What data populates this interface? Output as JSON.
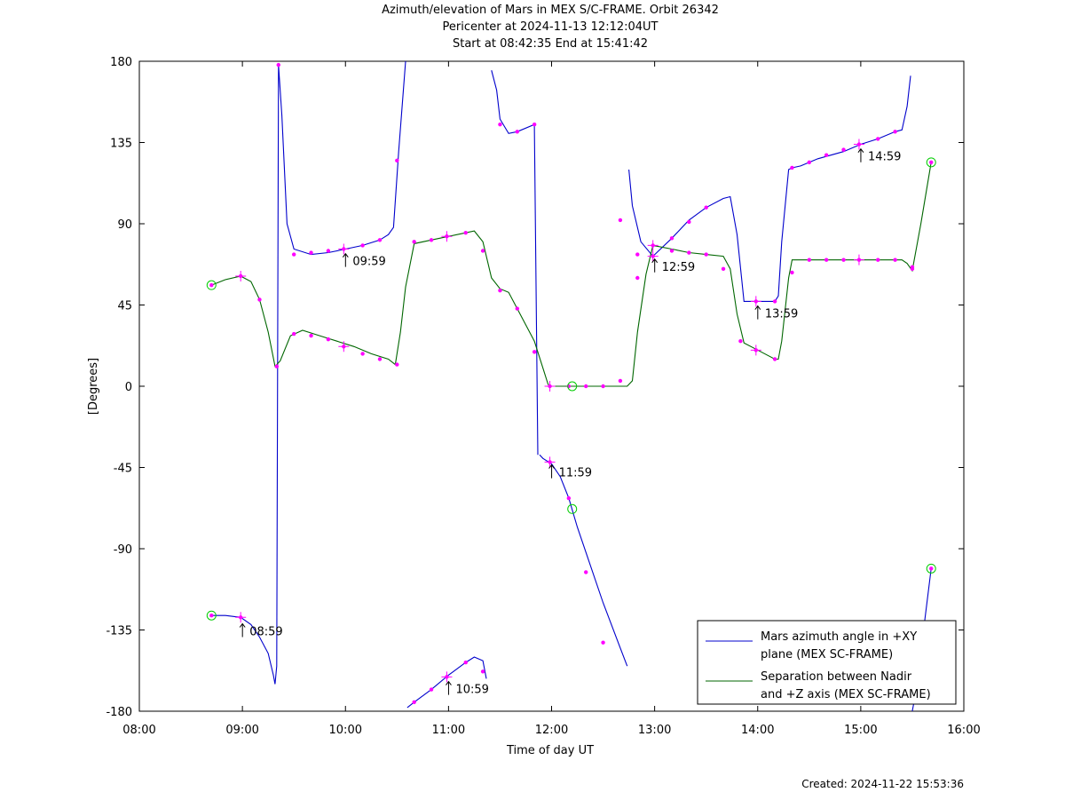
{
  "header": {
    "title": "Azimuth/elevation of Mars in MEX S/C-FRAME.  Orbit 26342",
    "subtitle1": "Pericenter at 2024-11-13 12:12:04UT",
    "subtitle2": "Start at 08:42:35 End at 15:41:42"
  },
  "footer": {
    "created": "Created: 2024-11-22 15:53:36"
  },
  "chart_data": {
    "type": "line",
    "title": "Azimuth/elevation of Mars in MEX S/C-FRAME.  Orbit 26342",
    "xlabel": "Time of day UT",
    "ylabel": "[Degrees]",
    "xlim": [
      "08:00",
      "16:00"
    ],
    "ylim": [
      -180,
      180
    ],
    "xticks": [
      "08:00",
      "09:00",
      "10:00",
      "11:00",
      "12:00",
      "13:00",
      "14:00",
      "15:00",
      "16:00"
    ],
    "yticks": [
      180,
      135,
      90,
      45,
      0,
      -45,
      -90,
      -135,
      -180
    ],
    "grid": false,
    "legend_position": "bottom-right",
    "colors": {
      "azimuth": "#0000cc",
      "separation": "#006600",
      "markers": "#ff00ff",
      "circles": "#00cc00"
    },
    "series": [
      {
        "name": "Mars azimuth angle in +XY plane (MEX SC-FRAME)",
        "color": "#0000cc",
        "x": [
          "08:42",
          "08:50",
          "08:59",
          "09:05",
          "09:10",
          "09:15",
          "09:18",
          "09:19",
          "09:20",
          "09:21",
          "09:23",
          "09:26",
          "09:30",
          "09:40",
          "09:50",
          "10:00",
          "10:10",
          "10:20",
          "10:25",
          "10:28",
          "10:31",
          "10:35",
          "null",
          "10:36",
          "10:40",
          "10:50",
          "11:00",
          "11:10",
          "11:15",
          "11:20",
          "11:22",
          "null",
          "11:25",
          "11:28",
          "11:30",
          "11:35",
          "11:40",
          "11:50",
          "11:52",
          "null",
          "11:53",
          "11:55",
          "12:00",
          "12:05",
          "12:10",
          "12:15",
          "12:20",
          "12:30",
          "12:40",
          "12:44",
          "null",
          "12:45",
          "12:47",
          "12:52",
          "12:59",
          "13:10",
          "13:20",
          "13:30",
          "13:40",
          "13:44",
          "13:48",
          "13:52",
          "14:00",
          "14:10",
          "14:12",
          "14:14",
          "14:18",
          "14:20",
          "14:25",
          "14:35",
          "14:50",
          "15:00",
          "15:10",
          "15:20",
          "15:24",
          "15:27",
          "15:29",
          "null",
          "15:30",
          "15:32",
          "15:41"
        ],
        "y": [
          -127,
          -127,
          -128,
          -132,
          -139,
          -148,
          -160,
          -165,
          -155,
          178,
          150,
          90,
          76,
          73,
          74,
          76,
          78,
          81,
          84,
          88,
          130,
          180,
          null,
          -178,
          -175,
          -168,
          -160,
          -153,
          -150,
          -152,
          -162,
          null,
          175,
          164,
          148,
          140,
          141,
          145,
          -38,
          null,
          -38,
          -40,
          -43,
          -50,
          -62,
          -78,
          -92,
          -120,
          -145,
          -155,
          null,
          120,
          100,
          80,
          72,
          82,
          92,
          99,
          104,
          105,
          84,
          47,
          47,
          47,
          50,
          80,
          120,
          121,
          122,
          126,
          130,
          134,
          137,
          141,
          142,
          155,
          172,
          null,
          -180,
          -170,
          -101
        ]
      },
      {
        "name": "Separation between Nadir and +Z axis (MEX SC-FRAME)",
        "color": "#006600",
        "x": [
          "08:42",
          "08:50",
          "08:59",
          "09:05",
          "09:10",
          "09:15",
          "09:19",
          "09:22",
          "09:28",
          "09:35",
          "09:45",
          "09:55",
          "10:05",
          "10:15",
          "10:25",
          "10:29",
          "10:32",
          "10:35",
          "10:40",
          "10:50",
          "11:00",
          "11:10",
          "11:15",
          "11:20",
          "11:25",
          "11:30",
          "11:35",
          "11:40",
          "11:50",
          "11:55",
          "11:58",
          "12:00",
          "12:10",
          "12:20",
          "12:30",
          "12:40",
          "12:44",
          "12:47",
          "12:50",
          "12:55",
          "12:59",
          "13:10",
          "13:20",
          "13:30",
          "13:40",
          "13:44",
          "13:48",
          "13:52",
          "14:00",
          "14:10",
          "14:12",
          "14:14",
          "14:18",
          "14:20",
          "14:25",
          "14:35",
          "14:50",
          "15:00",
          "15:10",
          "15:20",
          "15:24",
          "15:27",
          "15:30",
          "15:35",
          "15:41"
        ],
        "y": [
          56,
          59,
          61,
          58,
          48,
          30,
          11,
          14,
          28,
          31,
          28,
          25,
          22,
          18,
          15,
          12,
          30,
          55,
          79,
          81,
          83,
          85,
          86,
          80,
          60,
          54,
          52,
          43,
          25,
          10,
          1,
          0,
          0,
          0,
          0,
          0,
          0,
          3,
          30,
          62,
          78,
          76,
          74,
          73,
          72,
          65,
          40,
          24,
          20,
          15,
          15,
          25,
          60,
          70,
          70,
          70,
          70,
          70,
          70,
          70,
          70,
          68,
          64,
          90,
          124
        ]
      }
    ],
    "marker_points": [
      {
        "x": "08:42",
        "y": 56
      },
      {
        "x": "08:59",
        "y": 61
      },
      {
        "x": "09:10",
        "y": 48
      },
      {
        "x": "09:20",
        "y": 11
      },
      {
        "x": "09:30",
        "y": 29
      },
      {
        "x": "09:40",
        "y": 28
      },
      {
        "x": "09:50",
        "y": 26
      },
      {
        "x": "09:59",
        "y": 22
      },
      {
        "x": "10:10",
        "y": 18
      },
      {
        "x": "10:20",
        "y": 15
      },
      {
        "x": "10:30",
        "y": 12
      },
      {
        "x": "10:40",
        "y": 80
      },
      {
        "x": "10:50",
        "y": 81
      },
      {
        "x": "10:59",
        "y": 83
      },
      {
        "x": "11:10",
        "y": 85
      },
      {
        "x": "11:20",
        "y": 75
      },
      {
        "x": "11:30",
        "y": 53
      },
      {
        "x": "11:40",
        "y": 43
      },
      {
        "x": "11:50",
        "y": 19
      },
      {
        "x": "11:59",
        "y": 0
      },
      {
        "x": "12:10",
        "y": 0
      },
      {
        "x": "12:20",
        "y": 0
      },
      {
        "x": "12:30",
        "y": 0
      },
      {
        "x": "12:40",
        "y": 3
      },
      {
        "x": "12:50",
        "y": 60
      },
      {
        "x": "12:59",
        "y": 78
      },
      {
        "x": "13:10",
        "y": 75
      },
      {
        "x": "13:20",
        "y": 74
      },
      {
        "x": "13:30",
        "y": 73
      },
      {
        "x": "13:40",
        "y": 65
      },
      {
        "x": "13:50",
        "y": 25
      },
      {
        "x": "13:59",
        "y": 20
      },
      {
        "x": "14:10",
        "y": 15
      },
      {
        "x": "14:20",
        "y": 63
      },
      {
        "x": "14:30",
        "y": 70
      },
      {
        "x": "14:40",
        "y": 70
      },
      {
        "x": "14:50",
        "y": 70
      },
      {
        "x": "14:59",
        "y": 70
      },
      {
        "x": "15:10",
        "y": 70
      },
      {
        "x": "15:20",
        "y": 70
      },
      {
        "x": "15:30",
        "y": 65
      },
      {
        "x": "15:41",
        "y": 124
      },
      {
        "x": "08:42",
        "y": -127
      },
      {
        "x": "08:59",
        "y": -128
      },
      {
        "x": "09:21",
        "y": 178
      },
      {
        "x": "09:30",
        "y": 73
      },
      {
        "x": "09:40",
        "y": 74
      },
      {
        "x": "09:50",
        "y": 75
      },
      {
        "x": "09:59",
        "y": 76
      },
      {
        "x": "10:10",
        "y": 78
      },
      {
        "x": "10:20",
        "y": 81
      },
      {
        "x": "10:30",
        "y": 125
      },
      {
        "x": "10:40",
        "y": -175
      },
      {
        "x": "10:50",
        "y": -168
      },
      {
        "x": "10:59",
        "y": -161
      },
      {
        "x": "11:10",
        "y": -153
      },
      {
        "x": "11:20",
        "y": -158
      },
      {
        "x": "11:30",
        "y": 145
      },
      {
        "x": "11:40",
        "y": 141
      },
      {
        "x": "11:50",
        "y": 145
      },
      {
        "x": "11:59",
        "y": -42
      },
      {
        "x": "12:10",
        "y": -62
      },
      {
        "x": "12:20",
        "y": -103
      },
      {
        "x": "12:30",
        "y": -142
      },
      {
        "x": "12:40",
        "y": 92
      },
      {
        "x": "12:50",
        "y": 73
      },
      {
        "x": "12:59",
        "y": 72
      },
      {
        "x": "13:10",
        "y": 82
      },
      {
        "x": "13:20",
        "y": 91
      },
      {
        "x": "13:30",
        "y": 99
      },
      {
        "x": "13:59",
        "y": 47
      },
      {
        "x": "14:10",
        "y": 47
      },
      {
        "x": "14:20",
        "y": 121
      },
      {
        "x": "14:30",
        "y": 124
      },
      {
        "x": "14:40",
        "y": 128
      },
      {
        "x": "14:50",
        "y": 131
      },
      {
        "x": "14:59",
        "y": 134
      },
      {
        "x": "15:10",
        "y": 137
      },
      {
        "x": "15:20",
        "y": 141
      },
      {
        "x": "15:30",
        "y": 66
      },
      {
        "x": "15:41",
        "y": -101
      }
    ],
    "cross_points": [
      {
        "x": "08:59",
        "y": 61
      },
      {
        "x": "09:59",
        "y": 22
      },
      {
        "x": "10:59",
        "y": 83
      },
      {
        "x": "11:59",
        "y": 0
      },
      {
        "x": "12:59",
        "y": 78
      },
      {
        "x": "13:59",
        "y": 20
      },
      {
        "x": "14:59",
        "y": 70
      },
      {
        "x": "08:59",
        "y": -128
      },
      {
        "x": "09:59",
        "y": 76
      },
      {
        "x": "10:59",
        "y": -161
      },
      {
        "x": "11:59",
        "y": -42
      },
      {
        "x": "12:59",
        "y": 72
      },
      {
        "x": "13:59",
        "y": 47
      },
      {
        "x": "14:59",
        "y": 134
      }
    ],
    "circle_points": [
      {
        "x": "08:42",
        "y": 56
      },
      {
        "x": "08:42",
        "y": -127
      },
      {
        "x": "12:12",
        "y": 0
      },
      {
        "x": "12:12",
        "y": -68
      },
      {
        "x": "15:41",
        "y": 124
      },
      {
        "x": "15:41",
        "y": -101
      }
    ],
    "annotations": [
      {
        "text": "08:59",
        "x": "08:59",
        "y": -135
      },
      {
        "text": "09:59",
        "x": "09:59",
        "y": 70
      },
      {
        "text": "10:59",
        "x": "10:59",
        "y": -167
      },
      {
        "text": "11:59",
        "x": "11:59",
        "y": -47
      },
      {
        "text": "12:59",
        "x": "12:59",
        "y": 67
      },
      {
        "text": "13:59",
        "x": "13:59",
        "y": 41
      },
      {
        "text": "14:59",
        "x": "14:59",
        "y": 128
      }
    ],
    "legend": {
      "entries": [
        {
          "line1": "Mars azimuth angle in +XY",
          "line2": "plane (MEX SC-FRAME)"
        },
        {
          "line1": "Separation between Nadir",
          "line2": "and +Z axis (MEX SC-FRAME)"
        }
      ]
    }
  }
}
